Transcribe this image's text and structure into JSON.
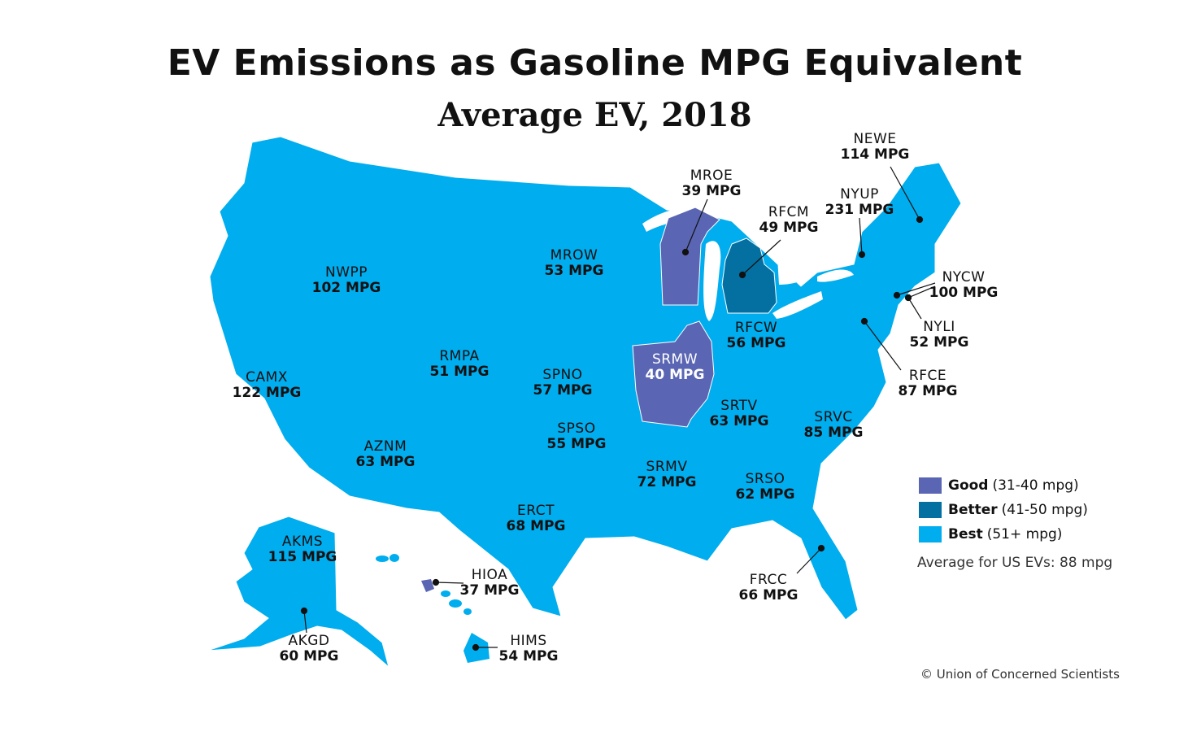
{
  "title": "EV Emissions as Gasoline MPG Equivalent",
  "subtitle": "Average EV, 2018",
  "colors": {
    "good": "#5a66b3",
    "better": "#0470a1",
    "best": "#00adee"
  },
  "regions": [
    {
      "code": "NEWE",
      "mpg": "114 MPG",
      "rating": "best"
    },
    {
      "code": "MROE",
      "mpg": "39 MPG",
      "rating": "good"
    },
    {
      "code": "NYUP",
      "mpg": "231 MPG",
      "rating": "best"
    },
    {
      "code": "RFCM",
      "mpg": "49 MPG",
      "rating": "better"
    },
    {
      "code": "NYCW",
      "mpg": "100 MPG",
      "rating": "best"
    },
    {
      "code": "MROW",
      "mpg": "53 MPG",
      "rating": "best"
    },
    {
      "code": "NWPP",
      "mpg": "102 MPG",
      "rating": "best"
    },
    {
      "code": "RFCW",
      "mpg": "56 MPG",
      "rating": "best"
    },
    {
      "code": "NYLI",
      "mpg": "52 MPG",
      "rating": "best"
    },
    {
      "code": "RMPA",
      "mpg": "51 MPG",
      "rating": "best"
    },
    {
      "code": "SRMW",
      "mpg": "40 MPG",
      "rating": "good"
    },
    {
      "code": "SPNO",
      "mpg": "57 MPG",
      "rating": "best"
    },
    {
      "code": "RFCE",
      "mpg": "87 MPG",
      "rating": "best"
    },
    {
      "code": "CAMX",
      "mpg": "122 MPG",
      "rating": "best"
    },
    {
      "code": "SRTV",
      "mpg": "63 MPG",
      "rating": "best"
    },
    {
      "code": "SRVC",
      "mpg": "85 MPG",
      "rating": "best"
    },
    {
      "code": "SPSO",
      "mpg": "55 MPG",
      "rating": "best"
    },
    {
      "code": "AZNM",
      "mpg": "63 MPG",
      "rating": "best"
    },
    {
      "code": "SRMV",
      "mpg": "72 MPG",
      "rating": "best"
    },
    {
      "code": "SRSO",
      "mpg": "62 MPG",
      "rating": "best"
    },
    {
      "code": "ERCT",
      "mpg": "68 MPG",
      "rating": "best"
    },
    {
      "code": "AKMS",
      "mpg": "115 MPG",
      "rating": "best"
    },
    {
      "code": "HIOA",
      "mpg": "37 MPG",
      "rating": "good"
    },
    {
      "code": "FRCC",
      "mpg": "66 MPG",
      "rating": "best"
    },
    {
      "code": "AKGD",
      "mpg": "60 MPG",
      "rating": "best"
    },
    {
      "code": "HIMS",
      "mpg": "54 MPG",
      "rating": "best"
    }
  ],
  "legend": [
    {
      "label": "Good",
      "range": "(31-40 mpg)",
      "color": "#5a66b3"
    },
    {
      "label": "Better",
      "range": "(41-50 mpg)",
      "color": "#0470a1"
    },
    {
      "label": "Best",
      "range": "(51+ mpg)",
      "color": "#00adee"
    }
  ],
  "average_note": "Average for US EVs: 88 mpg",
  "credit": "© Union of Concerned Scientists"
}
